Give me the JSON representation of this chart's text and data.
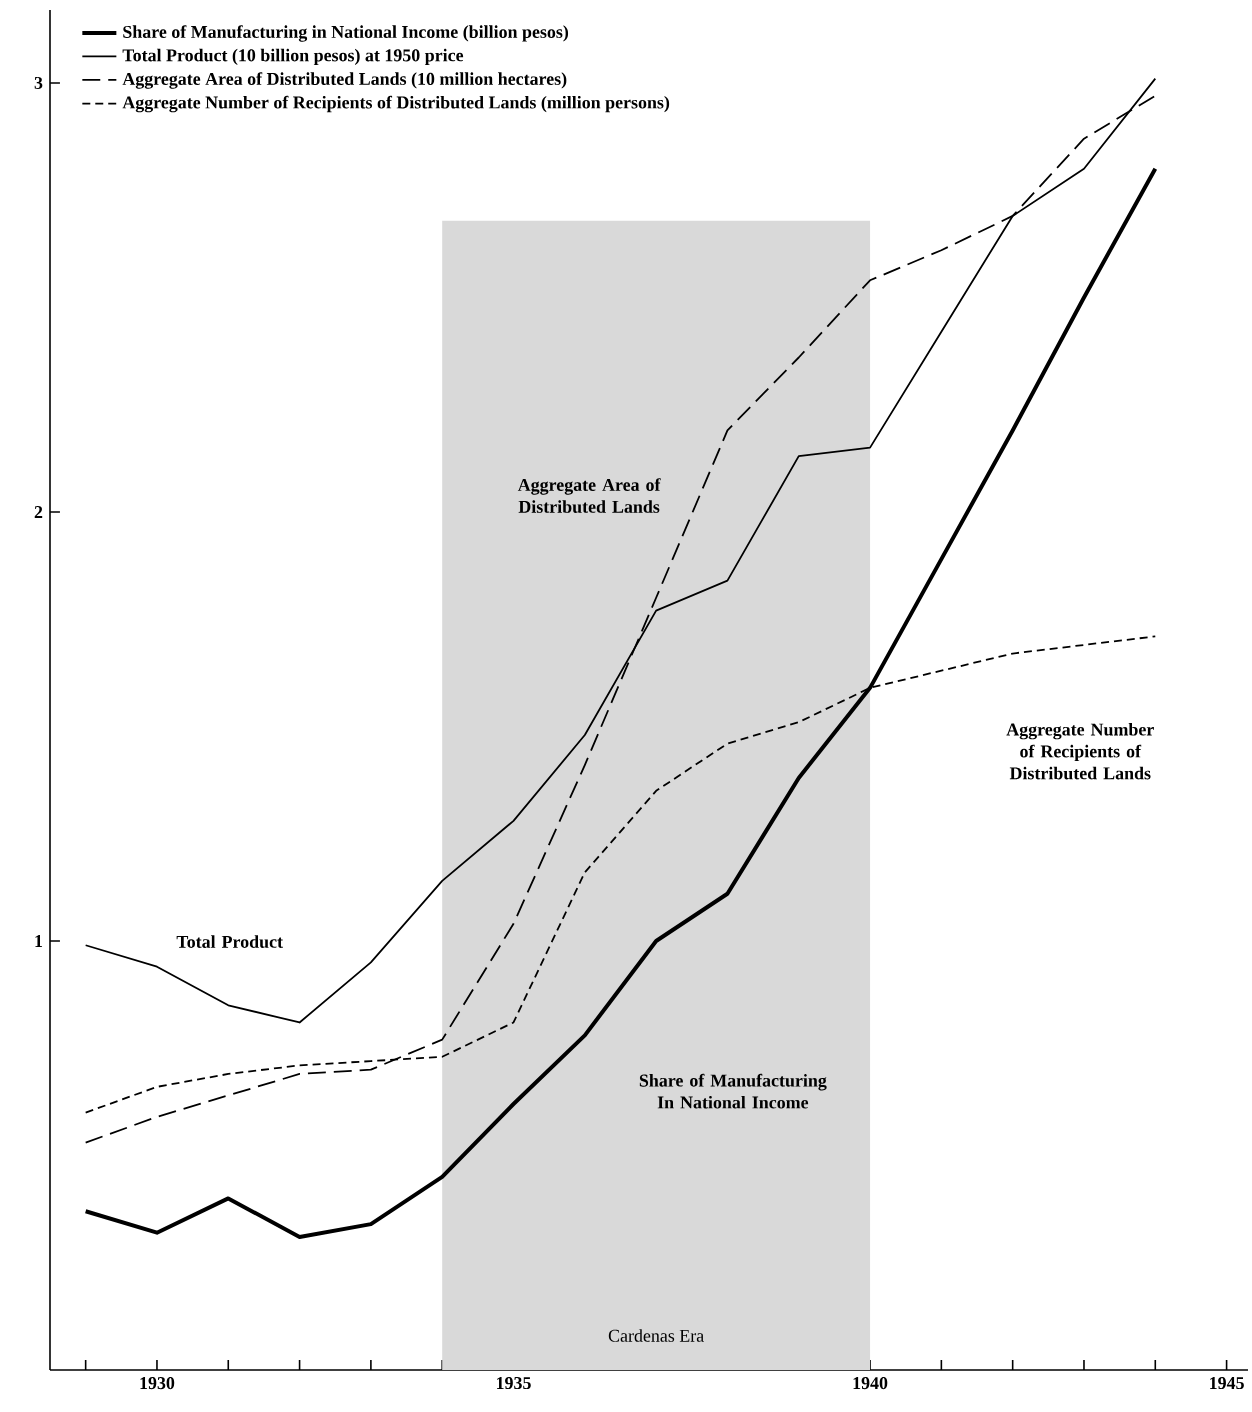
{
  "chart_data": {
    "type": "line",
    "x": [
      1929,
      1930,
      1931,
      1932,
      1933,
      1934,
      1935,
      1936,
      1937,
      1938,
      1939,
      1940,
      1941,
      1942,
      1943,
      1944
    ],
    "series": [
      {
        "name": "Share of Manufacturing in National Income (billion pesos)",
        "color": "#000000",
        "line_style": "solid",
        "values": [
          0.37,
          0.32,
          0.4,
          0.31,
          0.34,
          0.45,
          0.62,
          0.78,
          1.0,
          1.11,
          1.38,
          1.59,
          1.89,
          2.19,
          2.5,
          2.8
        ]
      },
      {
        "name": "Total Product (10 billion pesos) at 1950 price",
        "color": "#000000",
        "line_style": "solid",
        "values": [
          0.99,
          0.94,
          0.85,
          0.81,
          0.95,
          1.14,
          1.28,
          1.48,
          1.77,
          1.84,
          2.13,
          2.15,
          2.42,
          2.69,
          2.8,
          3.01
        ]
      },
      {
        "name": "Aggregate Area of Distributed Lands (10 million hectares)",
        "color": "#000000",
        "line_style": "dashed",
        "values": [
          0.53,
          0.59,
          0.64,
          0.69,
          0.7,
          0.77,
          1.04,
          1.41,
          1.8,
          2.19,
          2.36,
          2.54,
          2.61,
          2.69,
          2.87,
          2.97
        ]
      },
      {
        "name": "Aggregate Number of Recipients of Distributed Lands (million persons)",
        "color": "#000000",
        "line_style": "dashed",
        "values": [
          0.6,
          0.66,
          0.69,
          0.71,
          0.72,
          0.73,
          0.81,
          1.16,
          1.35,
          1.46,
          1.51,
          1.59,
          1.63,
          1.67,
          1.69,
          1.71
        ]
      }
    ],
    "xlim": [
      1928.5,
      1945.3
    ],
    "ylim": [
      0,
      3.17
    ],
    "xticks": [
      {
        "value": 1929,
        "label": null
      },
      1930,
      {
        "value": 1931,
        "label": null
      },
      {
        "value": 1932,
        "label": null
      },
      {
        "value": 1933,
        "label": null
      },
      {
        "value": 1934,
        "label": null
      },
      1935,
      {
        "value": 1936,
        "label": null
      },
      {
        "value": 1937,
        "label": null
      },
      {
        "value": 1938,
        "label": null
      },
      {
        "value": 1939,
        "label": null
      },
      1940,
      {
        "value": 1941,
        "label": null
      },
      {
        "value": 1942,
        "label": null
      },
      {
        "value": 1943,
        "label": null
      },
      {
        "value": 1944,
        "label": null
      },
      1945
    ],
    "yticks": [
      1,
      2,
      3
    ],
    "bands": [
      {
        "axis": "x",
        "from": 1934,
        "to": 1940,
        "label": "Cardenas Era",
        "color": "#d9d9d9"
      }
    ],
    "annotations": [
      "Total Product",
      "Aggregate Area of Distributed Lands",
      "Aggregate Number of Recipients of Distributed Lands",
      "Share of Manufacturing In National Income"
    ],
    "legend": "top left",
    "grid": false,
    "marker": "none"
  }
}
